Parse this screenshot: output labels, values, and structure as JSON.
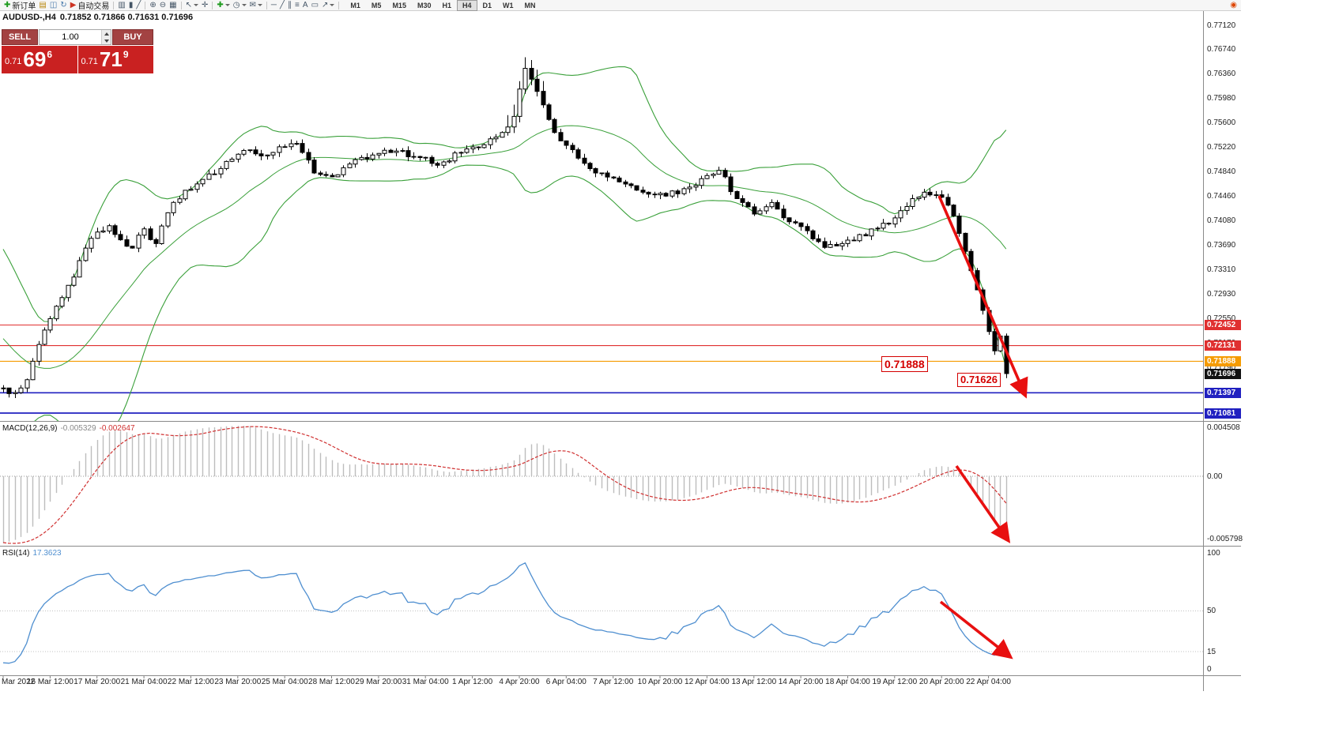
{
  "app": {
    "toolbar": {
      "buttons": [
        {
          "name": "new-order-button",
          "glyph": "✚",
          "color": "#1c9a1c",
          "label": "新订单"
        },
        {
          "name": "charts-grid-icon",
          "glyph": "▤",
          "color": "#b8860b"
        },
        {
          "name": "profiles-icon",
          "glyph": "◫",
          "color": "#4477aa"
        },
        {
          "name": "refresh-icon",
          "glyph": "↻",
          "color": "#4477aa"
        },
        {
          "name": "auto-trading-button",
          "glyph": "▶",
          "color": "#cc3322",
          "label": "自动交易"
        },
        {
          "sep": 1
        },
        {
          "name": "bar-chart-icon",
          "glyph": "▥",
          "color": "#445566"
        },
        {
          "name": "candlestick-chart-icon",
          "glyph": "▮",
          "color": "#445566"
        },
        {
          "name": "line-chart-icon",
          "glyph": "╱",
          "color": "#445566"
        },
        {
          "sep": 1
        },
        {
          "name": "zoom-in-icon",
          "glyph": "⊕",
          "color": "#445566"
        },
        {
          "name": "zoom-out-icon",
          "glyph": "⊖",
          "color": "#445566"
        },
        {
          "name": "tile-windows-icon",
          "glyph": "▦",
          "color": "#445566"
        },
        {
          "sep": 1
        },
        {
          "name": "cursor-icon",
          "glyph": "↖",
          "color": "#445566",
          "dd": 1
        },
        {
          "name": "crosshair-icon",
          "glyph": "✛",
          "color": "#445566"
        },
        {
          "sep": 1
        },
        {
          "name": "add-indicator-icon",
          "glyph": "✚",
          "color": "#1c9a1c",
          "dd": 1
        },
        {
          "name": "periods-icon",
          "glyph": "◷",
          "color": "#445566",
          "dd": 1
        },
        {
          "name": "templates-icon",
          "glyph": "✉",
          "color": "#445566",
          "dd": 1
        },
        {
          "sep": 1
        },
        {
          "name": "horizontal-line-icon",
          "glyph": "─",
          "color": "#445566"
        },
        {
          "name": "trendline-icon",
          "glyph": "╱",
          "color": "#445566"
        },
        {
          "name": "channel-icon",
          "glyph": "∥",
          "color": "#445566"
        },
        {
          "name": "fibonacci-icon",
          "glyph": "≡",
          "color": "#445566"
        },
        {
          "name": "text-icon",
          "glyph": "A",
          "color": "#445566"
        },
        {
          "name": "text-label-icon",
          "glyph": "▭",
          "color": "#445566"
        },
        {
          "name": "arrows-tool-icon",
          "glyph": "↗",
          "color": "#445566",
          "dd": 1
        },
        {
          "sep": 1
        }
      ],
      "timeframes": {
        "items": [
          "M1",
          "M5",
          "M15",
          "M30",
          "H1",
          "H4",
          "D1",
          "W1",
          "MN"
        ],
        "active": "H4"
      },
      "right_button": {
        "name": "alerts-icon",
        "glyph": "◉",
        "color": "#dd4400"
      }
    },
    "symbol_info": {
      "symbol": "AUDUSD-,H4",
      "ohlc": "0.71852 0.71866 0.71631 0.71696"
    },
    "trade_panel": {
      "sell_label": "SELL",
      "buy_label": "BUY",
      "volume": "1.00",
      "sell": {
        "prefix": "0.71",
        "big": "69",
        "pip": "6"
      },
      "buy": {
        "prefix": "0.71",
        "big": "71",
        "pip": "9"
      }
    },
    "annotations": [
      {
        "text": "0.71888"
      },
      {
        "text": "0.71626"
      }
    ],
    "price_axis": {
      "labels": [
        "0.77120",
        "0.76740",
        "0.76360",
        "0.75980",
        "0.75600",
        "0.75220",
        "0.74840",
        "0.74460",
        "0.74080",
        "0.73690",
        "0.73310",
        "0.72930",
        "0.72550",
        "0.72170",
        "0.71790",
        "0.71410",
        "0.71030"
      ]
    },
    "levels": [
      {
        "text": "0.72452",
        "price": 0.72452,
        "color": "#e03030",
        "line": true,
        "bold": false
      },
      {
        "text": "0.72131",
        "price": 0.72131,
        "color": "#e03030",
        "line": true,
        "bold": false
      },
      {
        "text": "0.71888",
        "price": 0.71888,
        "color": "#f59b00",
        "line": true,
        "bold": false
      },
      {
        "text": "0.71696",
        "price": 0.71696,
        "color": "#111111",
        "line": false,
        "current": true
      },
      {
        "text": "0.71397",
        "price": 0.71397,
        "color": "#2020c0",
        "line": true,
        "bold": true
      },
      {
        "text": "0.71081",
        "price": 0.71081,
        "color": "#2020c0",
        "line": true,
        "bold": true
      }
    ],
    "macd_panel": {
      "name": "MACD(12,26,9)",
      "value_main": "-0.005329",
      "value_signal": "-0.002647",
      "scale": [
        {
          "text": "0.004508",
          "v": 0.004508
        },
        {
          "text": "0.00",
          "v": 0
        },
        {
          "text": "-0.005798",
          "v": -0.005798
        }
      ]
    },
    "rsi_panel": {
      "name": "RSI(14)",
      "value": "17.3623",
      "scale": [
        {
          "text": "100",
          "v": 100
        },
        {
          "text": "50",
          "v": 50
        },
        {
          "text": "15",
          "v": 15
        },
        {
          "text": "0",
          "v": 0
        }
      ],
      "levels": [
        50,
        15
      ]
    },
    "time_axis": [
      "Mar 2022",
      "16 Mar 12:00",
      "17 Mar 20:00",
      "21 Mar 04:00",
      "22 Mar 12:00",
      "23 Mar 20:00",
      "25 Mar 04:00",
      "28 Mar 12:00",
      "29 Mar 20:00",
      "31 Mar 04:00",
      "1 Apr 12:00",
      "4 Apr 20:00",
      "6 Apr 04:00",
      "7 Apr 12:00",
      "10 Apr 20:00",
      "12 Apr 04:00",
      "13 Apr 12:00",
      "14 Apr 20:00",
      "18 Apr 04:00",
      "19 Apr 12:00",
      "20 Apr 20:00",
      "22 Apr 04:00"
    ]
  },
  "chart_data": {
    "type": "candlestick",
    "symbol": "AUDUSD",
    "timeframe": "H4",
    "title": "AUDUSD-,H4",
    "ohlc_current": {
      "open": 0.71852,
      "high": 0.71866,
      "low": 0.71631,
      "close": 0.71696
    },
    "current_price": 0.71696,
    "visible_bars": 172,
    "ylim": [
      0.7097,
      0.7734
    ],
    "x_axis_labels": [
      "Mar 2022",
      "16 Mar 12:00",
      "17 Mar 20:00",
      "21 Mar 04:00",
      "22 Mar 12:00",
      "23 Mar 20:00",
      "25 Mar 04:00",
      "28 Mar 12:00",
      "29 Mar 20:00",
      "31 Mar 04:00",
      "1 Apr 12:00",
      "4 Apr 20:00",
      "6 Apr 04:00",
      "7 Apr 12:00",
      "10 Apr 20:00",
      "12 Apr 04:00",
      "13 Apr 12:00",
      "14 Apr 20:00",
      "18 Apr 04:00",
      "19 Apr 12:00",
      "20 Apr 20:00",
      "22 Apr 04:00"
    ],
    "price_close_anchors": [
      [
        -60,
        0.747
      ],
      [
        -40,
        0.744
      ],
      [
        -25,
        0.74
      ],
      [
        -15,
        0.73
      ],
      [
        -8,
        0.7185
      ],
      [
        -4,
        0.715
      ],
      [
        -2,
        0.7142
      ],
      [
        0,
        0.7147
      ],
      [
        2,
        0.714
      ],
      [
        4,
        0.716
      ],
      [
        6,
        0.7215
      ],
      [
        8,
        0.7255
      ],
      [
        10,
        0.7288
      ],
      [
        12,
        0.732
      ],
      [
        14,
        0.7365
      ],
      [
        16,
        0.739
      ],
      [
        18,
        0.74
      ],
      [
        20,
        0.7378
      ],
      [
        22,
        0.7365
      ],
      [
        24,
        0.7395
      ],
      [
        26,
        0.7372
      ],
      [
        28,
        0.742
      ],
      [
        31,
        0.7455
      ],
      [
        34,
        0.7472
      ],
      [
        38,
        0.75
      ],
      [
        42,
        0.7518
      ],
      [
        45,
        0.751
      ],
      [
        48,
        0.7523
      ],
      [
        50,
        0.7528
      ],
      [
        53,
        0.7482
      ],
      [
        56,
        0.7476
      ],
      [
        59,
        0.7496
      ],
      [
        63,
        0.751
      ],
      [
        67,
        0.7516
      ],
      [
        71,
        0.7506
      ],
      [
        74,
        0.7494
      ],
      [
        78,
        0.7514
      ],
      [
        82,
        0.7526
      ],
      [
        85,
        0.7545
      ],
      [
        87,
        0.757
      ],
      [
        89,
        0.7645
      ],
      [
        90,
        0.7628
      ],
      [
        92,
        0.7588
      ],
      [
        94,
        0.7545
      ],
      [
        96,
        0.7525
      ],
      [
        98,
        0.7505
      ],
      [
        101,
        0.7482
      ],
      [
        105,
        0.7468
      ],
      [
        109,
        0.7452
      ],
      [
        113,
        0.7446
      ],
      [
        117,
        0.746
      ],
      [
        120,
        0.7478
      ],
      [
        122,
        0.7486
      ],
      [
        125,
        0.7442
      ],
      [
        128,
        0.7418
      ],
      [
        131,
        0.7436
      ],
      [
        134,
        0.7406
      ],
      [
        137,
        0.7392
      ],
      [
        140,
        0.7366
      ],
      [
        143,
        0.7372
      ],
      [
        146,
        0.7386
      ],
      [
        149,
        0.7396
      ],
      [
        152,
        0.7412
      ],
      [
        155,
        0.7442
      ],
      [
        157,
        0.7452
      ],
      [
        159,
        0.7448
      ],
      [
        161,
        0.7432
      ],
      [
        162,
        0.7415
      ],
      [
        163,
        0.7388
      ],
      [
        164,
        0.736
      ],
      [
        165,
        0.733
      ],
      [
        166,
        0.73
      ],
      [
        167,
        0.7268
      ],
      [
        168,
        0.7235
      ],
      [
        169,
        0.7205
      ],
      [
        170,
        0.7228
      ],
      [
        171,
        0.71696
      ]
    ],
    "overlays": {
      "bollinger": {
        "period": 20,
        "deviation": 2
      }
    },
    "horizontal_levels": [
      0.72452,
      0.72131,
      0.71888,
      0.71397,
      0.71081
    ],
    "annotated_prices": [
      0.71888,
      0.71626
    ],
    "indicators": [
      {
        "type": "MACD",
        "params": [
          12,
          26,
          9
        ],
        "last_values": [
          -0.005329,
          -0.002647
        ],
        "range": [
          -0.005798,
          0.004508
        ]
      },
      {
        "type": "RSI",
        "params": [
          14
        ],
        "last_value": 17.3623,
        "range": [
          0,
          100
        ],
        "marked_levels": [
          50,
          15
        ]
      }
    ]
  },
  "colors": {
    "level_red": "#e03030",
    "level_orange": "#f59b00",
    "level_blue": "#2020c0",
    "bollinger": "#3aa03a",
    "rsi_line": "#4f8fd0",
    "macd_hist": "#bdbdbd",
    "macd_signal": "#d03030",
    "arrow": "#e81010",
    "candle": "#000000",
    "annotation": "#d40000",
    "trade_box": "#c92121",
    "trade_button": "#a34242"
  }
}
